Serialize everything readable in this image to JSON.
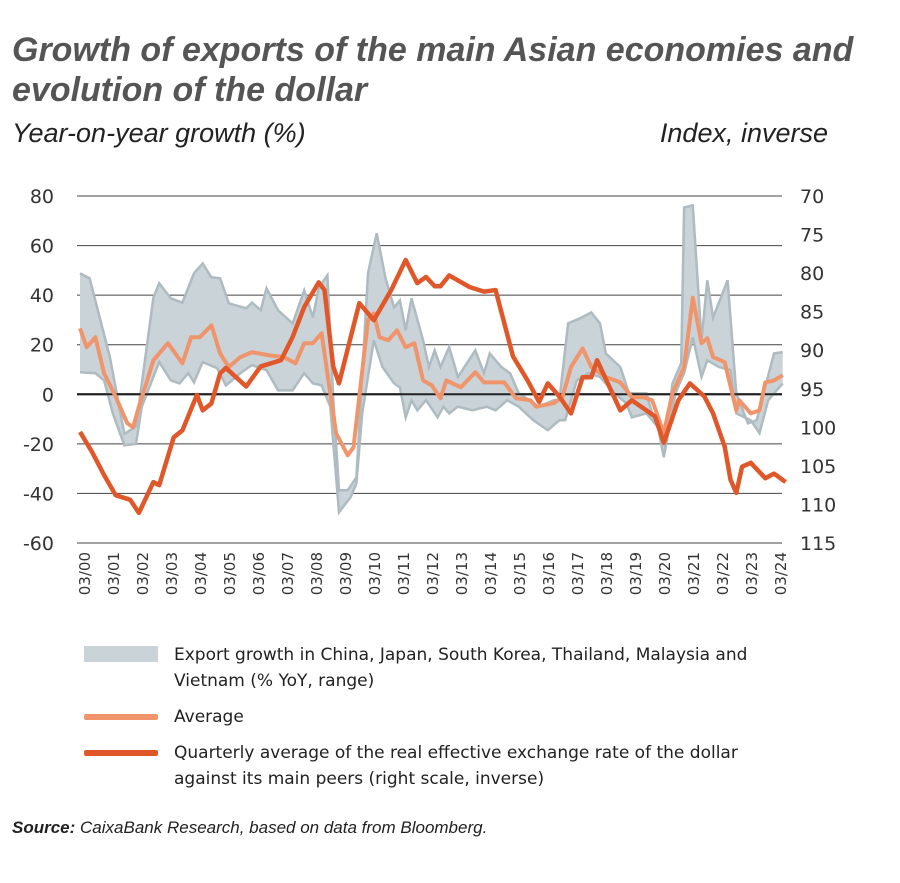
{
  "title": "Growth of exports of the main Asian economies and evolution of the dollar",
  "left_axis_label": "Year-on-year growth (%)",
  "right_axis_label": "Index, inverse",
  "source_label": "Source:",
  "source_text": "CaixaBank Research, based on data from Bloomberg.",
  "colors": {
    "range_fill": "#c9d3d8",
    "range_edge": "#aebbc1",
    "average": "#f0956b",
    "dollar": "#e0582a",
    "title": "#555555"
  },
  "chart_data": {
    "type": "line",
    "xlabel": "",
    "x_tick_labels": [
      "03/00",
      "03/01",
      "03/02",
      "03/03",
      "03/04",
      "03/05",
      "03/06",
      "03/07",
      "03/08",
      "03/09",
      "03/10",
      "03/11",
      "03/12",
      "03/13",
      "03/14",
      "03/15",
      "03/16",
      "03/17",
      "03/18",
      "03/19",
      "03/20",
      "03/21",
      "03/22",
      "03/23",
      "03/24"
    ],
    "x_range_years": [
      2000,
      2024.3
    ],
    "left_axis": {
      "label": "Year-on-year growth (%)",
      "ylim": [
        -60,
        80
      ],
      "ticks": [
        80,
        60,
        40,
        20,
        0,
        -20,
        -40,
        -60
      ]
    },
    "right_axis": {
      "label": "Index, inverse",
      "ylim": [
        70,
        115
      ],
      "inverted": true,
      "ticks": [
        70,
        75,
        80,
        85,
        90,
        95,
        100,
        105,
        110,
        115
      ]
    },
    "grid": true,
    "legend_position": "bottom",
    "series": [
      {
        "name": "Export growth in China, Japan, South Korea, Thailand, Malaysia and Vietnam (% YoY, range)",
        "kind": "range",
        "axis": "left",
        "upper": [
          [
            2000.07,
            48.8
          ],
          [
            2000.4,
            46.8
          ],
          [
            2001.1,
            15
          ],
          [
            2001.6,
            -16
          ],
          [
            2002,
            -13
          ],
          [
            2002.6,
            39
          ],
          [
            2002.8,
            44.8
          ],
          [
            2003.2,
            38.7
          ],
          [
            2003.6,
            37
          ],
          [
            2004,
            48.8
          ],
          [
            2004.3,
            52.8
          ],
          [
            2004.6,
            47.2
          ],
          [
            2004.9,
            46.8
          ],
          [
            2005.2,
            36.7
          ],
          [
            2005.8,
            34.7
          ],
          [
            2006,
            37
          ],
          [
            2006.3,
            33.9
          ],
          [
            2006.5,
            42.7
          ],
          [
            2006.9,
            33.9
          ],
          [
            2007.4,
            28.6
          ],
          [
            2007.8,
            41.9
          ],
          [
            2008.1,
            31
          ],
          [
            2008.3,
            43
          ],
          [
            2008.6,
            48
          ],
          [
            2008.8,
            -1
          ],
          [
            2009,
            -38.7
          ],
          [
            2009.3,
            -38.7
          ],
          [
            2009.6,
            -33.5
          ],
          [
            2010,
            48.8
          ],
          [
            2010.3,
            65
          ],
          [
            2010.6,
            47
          ],
          [
            2010.9,
            35
          ],
          [
            2011.1,
            37.9
          ],
          [
            2011.3,
            25.8
          ],
          [
            2011.5,
            38.7
          ],
          [
            2011.9,
            21.8
          ],
          [
            2012.1,
            11
          ],
          [
            2012.3,
            17.7
          ],
          [
            2012.5,
            11
          ],
          [
            2012.8,
            19
          ],
          [
            2013.1,
            7
          ],
          [
            2013.7,
            17.7
          ],
          [
            2014,
            8.5
          ],
          [
            2014.2,
            16.5
          ],
          [
            2014.6,
            11
          ],
          [
            2014.9,
            8.5
          ],
          [
            2015.2,
            0.4
          ],
          [
            2015.9,
            -5
          ],
          [
            2016.4,
            -2.4
          ],
          [
            2016.6,
            -2.4
          ],
          [
            2016.9,
            28.6
          ],
          [
            2017.3,
            30.6
          ],
          [
            2017.7,
            33
          ],
          [
            2018,
            28.6
          ],
          [
            2018.2,
            16.5
          ],
          [
            2018.7,
            11
          ],
          [
            2019,
            0.4
          ],
          [
            2019.6,
            0.4
          ],
          [
            2019.8,
            -7.7
          ],
          [
            2020.2,
            -19.8
          ],
          [
            2020.5,
            4.4
          ],
          [
            2020.8,
            12.5
          ],
          [
            2020.9,
            75.4
          ],
          [
            2021.2,
            76.2
          ],
          [
            2021.5,
            21.8
          ],
          [
            2021.7,
            46
          ],
          [
            2021.9,
            31
          ],
          [
            2022.4,
            46
          ],
          [
            2022.7,
            0.4
          ],
          [
            2023.1,
            -11.7
          ],
          [
            2023.4,
            -10.5
          ],
          [
            2024,
            16.5
          ],
          [
            2024.3,
            17
          ]
        ],
        "lower": [
          [
            2000.07,
            8.9
          ],
          [
            2000.6,
            8.5
          ],
          [
            2000.9,
            5.6
          ],
          [
            2001.2,
            -7.7
          ],
          [
            2001.6,
            -20.6
          ],
          [
            2002,
            -20
          ],
          [
            2002.2,
            -5
          ],
          [
            2002.8,
            13
          ],
          [
            2003.2,
            5.6
          ],
          [
            2003.5,
            4.4
          ],
          [
            2003.8,
            8.5
          ],
          [
            2004,
            4.8
          ],
          [
            2004.3,
            13
          ],
          [
            2004.8,
            10.5
          ],
          [
            2005.1,
            3.6
          ],
          [
            2005.6,
            8.5
          ],
          [
            2006,
            11.8
          ],
          [
            2006.5,
            9.7
          ],
          [
            2006.9,
            1.6
          ],
          [
            2007.4,
            1.6
          ],
          [
            2007.8,
            8.5
          ],
          [
            2008.1,
            4.4
          ],
          [
            2008.4,
            3.6
          ],
          [
            2008.7,
            -5
          ],
          [
            2009,
            -47.6
          ],
          [
            2009.4,
            -41.5
          ],
          [
            2009.6,
            -36
          ],
          [
            2009.8,
            -7.7
          ],
          [
            2010.2,
            21.8
          ],
          [
            2010.5,
            11
          ],
          [
            2010.9,
            4.4
          ],
          [
            2011.1,
            2.8
          ],
          [
            2011.3,
            -9.3
          ],
          [
            2011.5,
            -2.4
          ],
          [
            2011.7,
            -6.5
          ],
          [
            2012,
            -2.4
          ],
          [
            2012.4,
            -9.3
          ],
          [
            2012.6,
            -5
          ],
          [
            2012.8,
            -7.7
          ],
          [
            2013.1,
            -5
          ],
          [
            2013.6,
            -6.5
          ],
          [
            2014.1,
            -5
          ],
          [
            2014.4,
            -6.5
          ],
          [
            2014.8,
            -2.4
          ],
          [
            2015.2,
            -5
          ],
          [
            2015.7,
            -10.5
          ],
          [
            2016.2,
            -14.5
          ],
          [
            2016.6,
            -10.5
          ],
          [
            2016.8,
            -10.5
          ],
          [
            2017.2,
            5.6
          ],
          [
            2017.6,
            8.5
          ],
          [
            2018,
            7
          ],
          [
            2018.5,
            0.4
          ],
          [
            2018.9,
            -3.6
          ],
          [
            2019.1,
            -9.3
          ],
          [
            2019.6,
            -7.7
          ],
          [
            2020,
            -13.3
          ],
          [
            2020.2,
            -25.4
          ],
          [
            2020.6,
            0.4
          ],
          [
            2020.9,
            8.5
          ],
          [
            2021.2,
            23
          ],
          [
            2021.5,
            7
          ],
          [
            2021.7,
            13.7
          ],
          [
            2022.1,
            11
          ],
          [
            2022.5,
            9.7
          ],
          [
            2022.7,
            -7.7
          ],
          [
            2023.2,
            -10.5
          ],
          [
            2023.5,
            -15.7
          ],
          [
            2023.8,
            -2.4
          ],
          [
            2024.3,
            4.4
          ]
        ]
      },
      {
        "name": "Average",
        "kind": "line",
        "axis": "left",
        "points": [
          [
            2000.07,
            26.6
          ],
          [
            2000.3,
            19
          ],
          [
            2000.6,
            23
          ],
          [
            2000.9,
            8.5
          ],
          [
            2001.3,
            -1
          ],
          [
            2001.7,
            -11.7
          ],
          [
            2001.9,
            -13.3
          ],
          [
            2002.1,
            -5
          ],
          [
            2002.6,
            13.7
          ],
          [
            2003.1,
            20.6
          ],
          [
            2003.6,
            12.5
          ],
          [
            2003.9,
            23
          ],
          [
            2004.2,
            23
          ],
          [
            2004.6,
            27.8
          ],
          [
            2004.9,
            16.5
          ],
          [
            2005.2,
            11
          ],
          [
            2005.6,
            15
          ],
          [
            2006,
            17
          ],
          [
            2006.6,
            15.7
          ],
          [
            2007.1,
            15
          ],
          [
            2007.5,
            12.5
          ],
          [
            2007.8,
            20.6
          ],
          [
            2008.1,
            20.6
          ],
          [
            2008.4,
            24.6
          ],
          [
            2008.7,
            0.4
          ],
          [
            2008.9,
            -15.7
          ],
          [
            2009.3,
            -24.6
          ],
          [
            2009.5,
            -21.4
          ],
          [
            2010,
            29.8
          ],
          [
            2010.2,
            32.6
          ],
          [
            2010.4,
            23
          ],
          [
            2010.7,
            21.8
          ],
          [
            2011,
            25.8
          ],
          [
            2011.3,
            19
          ],
          [
            2011.6,
            20.6
          ],
          [
            2011.9,
            5.6
          ],
          [
            2012.2,
            3.6
          ],
          [
            2012.5,
            -1.6
          ],
          [
            2012.7,
            5.6
          ],
          [
            2013.2,
            2.8
          ],
          [
            2013.7,
            8.9
          ],
          [
            2014,
            4.8
          ],
          [
            2014.7,
            4.8
          ],
          [
            2015.1,
            -1.6
          ],
          [
            2015.6,
            -2.4
          ],
          [
            2015.8,
            -5
          ],
          [
            2016.4,
            -3.6
          ],
          [
            2016.7,
            -1.2
          ],
          [
            2017,
            11
          ],
          [
            2017.4,
            18.5
          ],
          [
            2017.7,
            11
          ],
          [
            2018.2,
            7
          ],
          [
            2018.7,
            4.8
          ],
          [
            2019.1,
            -1.2
          ],
          [
            2019.5,
            -1.2
          ],
          [
            2019.8,
            -2.4
          ],
          [
            2020.2,
            -15.7
          ],
          [
            2020.5,
            0.4
          ],
          [
            2020.9,
            11
          ],
          [
            2021.2,
            39
          ],
          [
            2021.5,
            20.6
          ],
          [
            2021.7,
            22.6
          ],
          [
            2021.9,
            15
          ],
          [
            2022.3,
            13
          ],
          [
            2022.7,
            -6.5
          ],
          [
            2022.8,
            -2.4
          ],
          [
            2023.2,
            -7.7
          ],
          [
            2023.5,
            -6.5
          ],
          [
            2023.7,
            4.8
          ],
          [
            2024,
            5.6
          ],
          [
            2024.3,
            7.7
          ]
        ]
      },
      {
        "name": "Quarterly average of the real effective exchange rate of the dollar against its main peers (right scale, inverse)",
        "kind": "line",
        "axis": "right",
        "points": [
          [
            2000.07,
            100.6
          ],
          [
            2000.5,
            103.3
          ],
          [
            2000.9,
            106.2
          ],
          [
            2001.3,
            108.8
          ],
          [
            2001.8,
            109.4
          ],
          [
            2002.1,
            111.1
          ],
          [
            2002.6,
            107.1
          ],
          [
            2002.8,
            107.5
          ],
          [
            2003.3,
            101.3
          ],
          [
            2003.6,
            100.4
          ],
          [
            2004.1,
            95.8
          ],
          [
            2004.3,
            97.8
          ],
          [
            2004.6,
            96.9
          ],
          [
            2004.9,
            93
          ],
          [
            2005.1,
            92.3
          ],
          [
            2005.8,
            94.7
          ],
          [
            2006.3,
            92.1
          ],
          [
            2007,
            91.3
          ],
          [
            2007.4,
            88.3
          ],
          [
            2007.8,
            84.4
          ],
          [
            2008.3,
            81.2
          ],
          [
            2008.5,
            82.2
          ],
          [
            2008.8,
            92.1
          ],
          [
            2009,
            94.3
          ],
          [
            2009.7,
            83.9
          ],
          [
            2010.2,
            86.1
          ],
          [
            2010.8,
            82.2
          ],
          [
            2011.3,
            78.3
          ],
          [
            2011.7,
            81.3
          ],
          [
            2012,
            80.5
          ],
          [
            2012.3,
            81.7
          ],
          [
            2012.5,
            81.7
          ],
          [
            2012.8,
            80.3
          ],
          [
            2013.5,
            81.8
          ],
          [
            2014,
            82.4
          ],
          [
            2014.4,
            82.2
          ],
          [
            2015,
            90.8
          ],
          [
            2015.5,
            93.9
          ],
          [
            2015.9,
            96.7
          ],
          [
            2016.2,
            94.3
          ],
          [
            2016.6,
            96
          ],
          [
            2017,
            98.2
          ],
          [
            2017.4,
            93.5
          ],
          [
            2017.7,
            93.5
          ],
          [
            2017.9,
            91.3
          ],
          [
            2018.7,
            97.8
          ],
          [
            2019.1,
            96.5
          ],
          [
            2019.6,
            97.8
          ],
          [
            2019.9,
            98.6
          ],
          [
            2020.2,
            102
          ],
          [
            2020.7,
            96.5
          ],
          [
            2021.1,
            94.3
          ],
          [
            2021.6,
            96
          ],
          [
            2021.9,
            98.2
          ],
          [
            2022.3,
            102.5
          ],
          [
            2022.5,
            106.8
          ],
          [
            2022.7,
            108.5
          ],
          [
            2022.9,
            105.1
          ],
          [
            2023.2,
            104.6
          ],
          [
            2023.7,
            106.6
          ],
          [
            2024,
            106
          ],
          [
            2024.4,
            107.1
          ]
        ]
      }
    ]
  }
}
